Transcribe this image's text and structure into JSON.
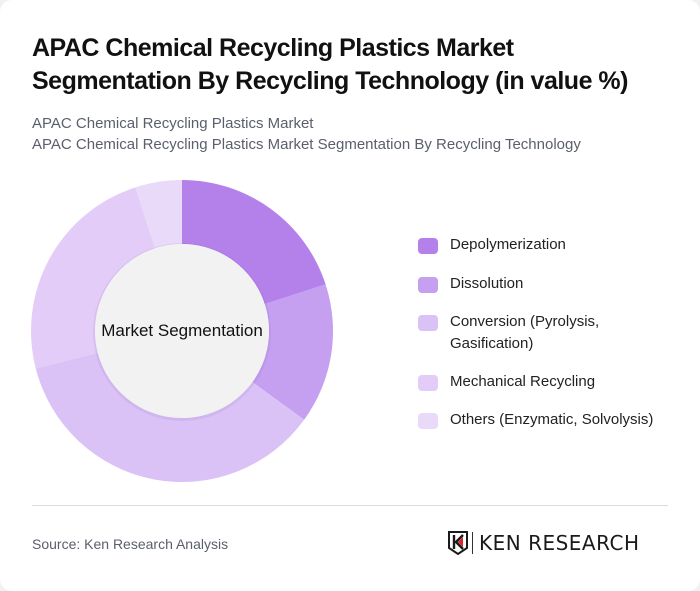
{
  "header": {
    "title": "APAC Chemical Recycling Plastics Market Segmentation By Recycling Technology (in value %)",
    "subtitle_line1": "APAC Chemical Recycling Plastics Market",
    "subtitle_line2": "APAC Chemical Recycling Plastics Market Segmentation By Recycling Technology"
  },
  "chart": {
    "center_label": "Market Segmentation"
  },
  "chart_data": {
    "type": "pie",
    "variant": "donut",
    "title": "APAC Chemical Recycling Plastics Market Segmentation By Recycling Technology (in value %)",
    "center_label": "Market Segmentation",
    "categories": [
      "Depolymerization",
      "Dissolution",
      "Conversion (Pyrolysis, Gasification)",
      "Mechanical Recycling",
      "Others (Enzymatic, Solvolysis)"
    ],
    "values": [
      20,
      15,
      36,
      24,
      5
    ],
    "unit": "%",
    "colors": [
      "#b481ea",
      "#c59ff0",
      "#dbc2f6",
      "#e3cdf8",
      "#e9daf9"
    ],
    "start_angle_deg": 0,
    "direction": "clockwise",
    "legend_position": "right"
  },
  "legend": {
    "items": [
      {
        "label": "Depolymerization",
        "color": "#b481ea"
      },
      {
        "label": "Dissolution",
        "color": "#c59ff0"
      },
      {
        "label": "Conversion (Pyrolysis, Gasification)",
        "color": "#dbc2f6"
      },
      {
        "label": "Mechanical Recycling",
        "color": "#e3cdf8"
      },
      {
        "label": "Others (Enzymatic, Solvolysis)",
        "color": "#e9daf9"
      }
    ]
  },
  "footer": {
    "source": "Source: Ken Research Analysis",
    "logo_text": "KEN RESEARCH"
  }
}
